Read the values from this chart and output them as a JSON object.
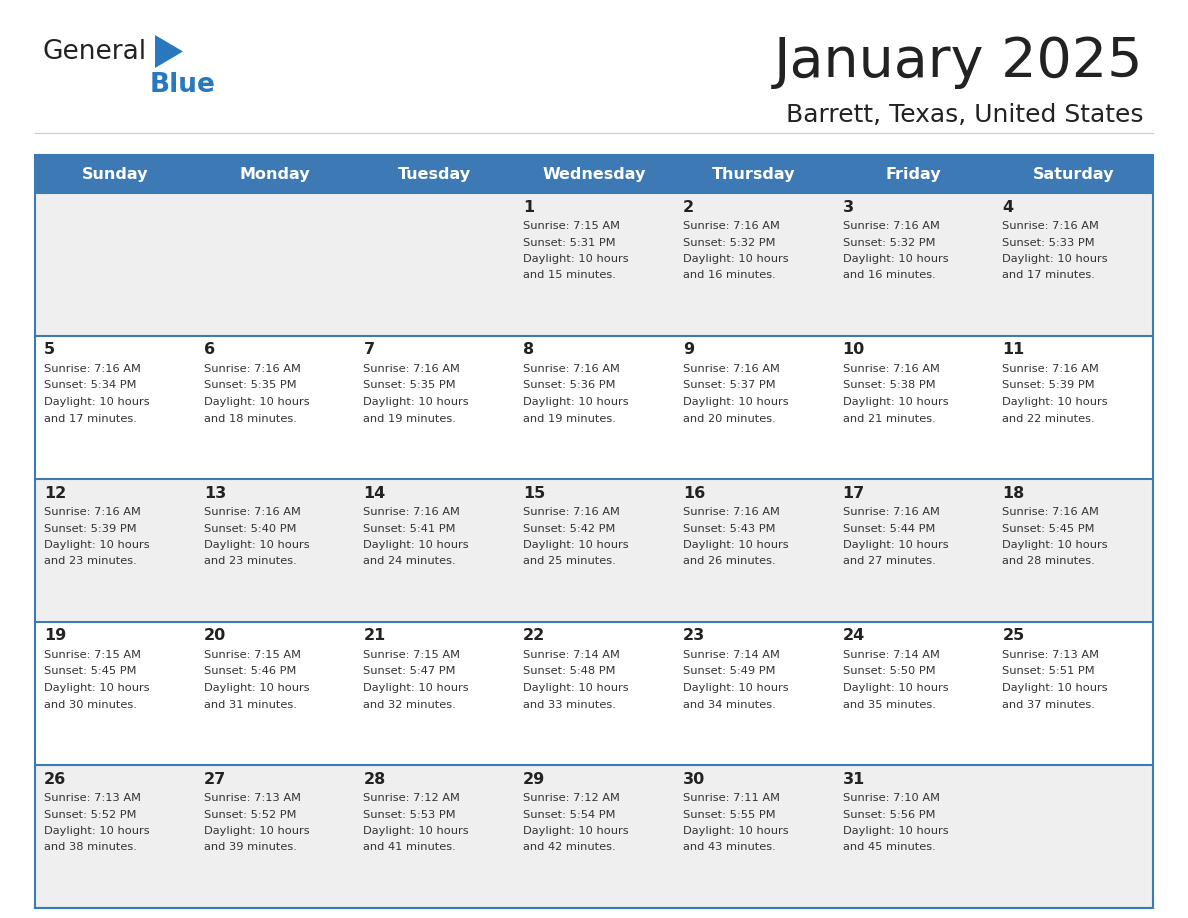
{
  "title": "January 2025",
  "subtitle": "Barrett, Texas, United States",
  "days_of_week": [
    "Sunday",
    "Monday",
    "Tuesday",
    "Wednesday",
    "Thursday",
    "Friday",
    "Saturday"
  ],
  "header_bg": "#3d7ab5",
  "header_text_color": "#ffffff",
  "row_bg_odd": "#efefef",
  "row_bg_even": "#ffffff",
  "separator_color": "#3d7ab5",
  "day_num_color": "#222222",
  "cell_text_color": "#333333",
  "calendar": [
    [
      {
        "day": null
      },
      {
        "day": null
      },
      {
        "day": null
      },
      {
        "day": 1,
        "sunrise": "7:15 AM",
        "sunset": "5:31 PM",
        "daylight": "10 hours and 15 minutes."
      },
      {
        "day": 2,
        "sunrise": "7:16 AM",
        "sunset": "5:32 PM",
        "daylight": "10 hours and 16 minutes."
      },
      {
        "day": 3,
        "sunrise": "7:16 AM",
        "sunset": "5:32 PM",
        "daylight": "10 hours and 16 minutes."
      },
      {
        "day": 4,
        "sunrise": "7:16 AM",
        "sunset": "5:33 PM",
        "daylight": "10 hours and 17 minutes."
      }
    ],
    [
      {
        "day": 5,
        "sunrise": "7:16 AM",
        "sunset": "5:34 PM",
        "daylight": "10 hours and 17 minutes."
      },
      {
        "day": 6,
        "sunrise": "7:16 AM",
        "sunset": "5:35 PM",
        "daylight": "10 hours and 18 minutes."
      },
      {
        "day": 7,
        "sunrise": "7:16 AM",
        "sunset": "5:35 PM",
        "daylight": "10 hours and 19 minutes."
      },
      {
        "day": 8,
        "sunrise": "7:16 AM",
        "sunset": "5:36 PM",
        "daylight": "10 hours and 19 minutes."
      },
      {
        "day": 9,
        "sunrise": "7:16 AM",
        "sunset": "5:37 PM",
        "daylight": "10 hours and 20 minutes."
      },
      {
        "day": 10,
        "sunrise": "7:16 AM",
        "sunset": "5:38 PM",
        "daylight": "10 hours and 21 minutes."
      },
      {
        "day": 11,
        "sunrise": "7:16 AM",
        "sunset": "5:39 PM",
        "daylight": "10 hours and 22 minutes."
      }
    ],
    [
      {
        "day": 12,
        "sunrise": "7:16 AM",
        "sunset": "5:39 PM",
        "daylight": "10 hours and 23 minutes."
      },
      {
        "day": 13,
        "sunrise": "7:16 AM",
        "sunset": "5:40 PM",
        "daylight": "10 hours and 23 minutes."
      },
      {
        "day": 14,
        "sunrise": "7:16 AM",
        "sunset": "5:41 PM",
        "daylight": "10 hours and 24 minutes."
      },
      {
        "day": 15,
        "sunrise": "7:16 AM",
        "sunset": "5:42 PM",
        "daylight": "10 hours and 25 minutes."
      },
      {
        "day": 16,
        "sunrise": "7:16 AM",
        "sunset": "5:43 PM",
        "daylight": "10 hours and 26 minutes."
      },
      {
        "day": 17,
        "sunrise": "7:16 AM",
        "sunset": "5:44 PM",
        "daylight": "10 hours and 27 minutes."
      },
      {
        "day": 18,
        "sunrise": "7:16 AM",
        "sunset": "5:45 PM",
        "daylight": "10 hours and 28 minutes."
      }
    ],
    [
      {
        "day": 19,
        "sunrise": "7:15 AM",
        "sunset": "5:45 PM",
        "daylight": "10 hours and 30 minutes."
      },
      {
        "day": 20,
        "sunrise": "7:15 AM",
        "sunset": "5:46 PM",
        "daylight": "10 hours and 31 minutes."
      },
      {
        "day": 21,
        "sunrise": "7:15 AM",
        "sunset": "5:47 PM",
        "daylight": "10 hours and 32 minutes."
      },
      {
        "day": 22,
        "sunrise": "7:14 AM",
        "sunset": "5:48 PM",
        "daylight": "10 hours and 33 minutes."
      },
      {
        "day": 23,
        "sunrise": "7:14 AM",
        "sunset": "5:49 PM",
        "daylight": "10 hours and 34 minutes."
      },
      {
        "day": 24,
        "sunrise": "7:14 AM",
        "sunset": "5:50 PM",
        "daylight": "10 hours and 35 minutes."
      },
      {
        "day": 25,
        "sunrise": "7:13 AM",
        "sunset": "5:51 PM",
        "daylight": "10 hours and 37 minutes."
      }
    ],
    [
      {
        "day": 26,
        "sunrise": "7:13 AM",
        "sunset": "5:52 PM",
        "daylight": "10 hours and 38 minutes."
      },
      {
        "day": 27,
        "sunrise": "7:13 AM",
        "sunset": "5:52 PM",
        "daylight": "10 hours and 39 minutes."
      },
      {
        "day": 28,
        "sunrise": "7:12 AM",
        "sunset": "5:53 PM",
        "daylight": "10 hours and 41 minutes."
      },
      {
        "day": 29,
        "sunrise": "7:12 AM",
        "sunset": "5:54 PM",
        "daylight": "10 hours and 42 minutes."
      },
      {
        "day": 30,
        "sunrise": "7:11 AM",
        "sunset": "5:55 PM",
        "daylight": "10 hours and 43 minutes."
      },
      {
        "day": 31,
        "sunrise": "7:10 AM",
        "sunset": "5:56 PM",
        "daylight": "10 hours and 45 minutes."
      },
      {
        "day": null
      }
    ]
  ],
  "logo_general_color": "#222222",
  "logo_blue_color": "#2878c0",
  "logo_triangle_color": "#2878c0",
  "figsize": [
    11.88,
    9.18
  ],
  "dpi": 100
}
